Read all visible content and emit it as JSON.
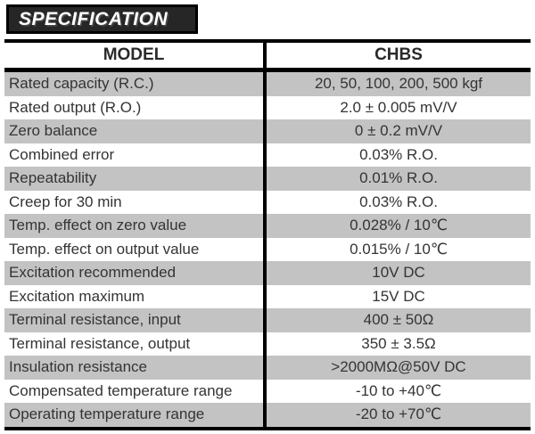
{
  "banner": {
    "title": "SPECIFICATION"
  },
  "table": {
    "header": {
      "model_label": "MODEL",
      "model_value": "CHBS"
    },
    "rows": [
      {
        "label": "Rated capacity (R.C.)",
        "value": "20, 50, 100, 200, 500 kgf"
      },
      {
        "label": "Rated output (R.O.)",
        "value": "2.0 ± 0.005 mV/V"
      },
      {
        "label": "Zero balance",
        "value": "0 ± 0.2 mV/V"
      },
      {
        "label": "Combined error",
        "value": "0.03% R.O."
      },
      {
        "label": "Repeatability",
        "value": "0.01% R.O."
      },
      {
        "label": "Creep for 30 min",
        "value": "0.03% R.O."
      },
      {
        "label": "Temp. effect on zero value",
        "value": "0.028% / 10℃"
      },
      {
        "label": "Temp. effect on output value",
        "value": "0.015% / 10℃"
      },
      {
        "label": "Excitation recommended",
        "value": "10V DC"
      },
      {
        "label": "Excitation maximum",
        "value": "15V DC"
      },
      {
        "label": "Terminal resistance, input",
        "value": "400 ± 50Ω"
      },
      {
        "label": "Terminal resistance, output",
        "value": "350 ± 3.5Ω"
      },
      {
        "label": "Insulation resistance",
        "value": ">2000MΩ@50V DC"
      },
      {
        "label": "Compensated temperature range",
        "value": "-10 to +40℃"
      },
      {
        "label": "Operating temperature range",
        "value": "-20 to +70℃"
      }
    ]
  },
  "colors": {
    "banner_background": "#262626",
    "border": "#000000",
    "row_shade": "#c3c3c3",
    "text": "#343434"
  }
}
